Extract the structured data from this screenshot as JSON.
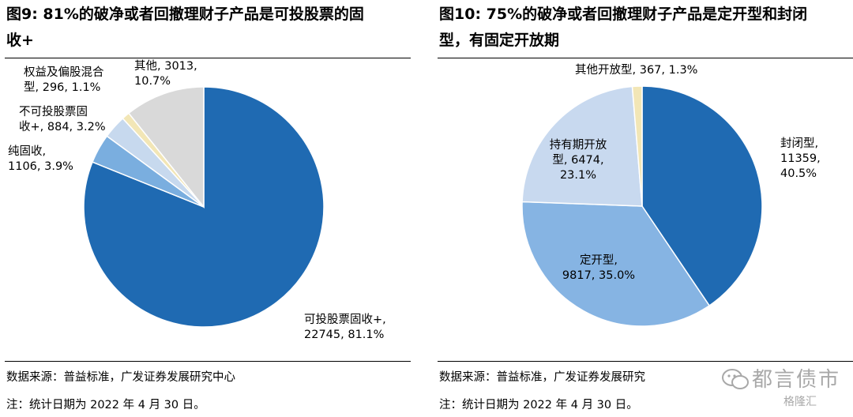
{
  "left": {
    "title_line1": "图9: 81%的破净或者回撤理财子产品是可投股票的固",
    "title_line2": "收+",
    "source": "数据来源：普益标准，广发证券发展研究中心",
    "note": "注：统计日期为 2022 年 4 月 30 日。"
  },
  "right": {
    "title_line1": "图10: 75%的破净或者回撤理财子产品是定开型和封闭",
    "title_line2": "型，有固定开放期",
    "source": "数据来源：普益标准，广发证券发展研究",
    "note": "注：统计日期为 2022 年 4 月 30 日。"
  },
  "watermark": {
    "name": "都言债市",
    "sub": "格隆汇"
  },
  "chart_data": [
    {
      "type": "pie",
      "title": "图9: 81%的破净或者回撤理财子产品是可投股票的固收+",
      "slices": [
        {
          "name": "可投股票固收+",
          "value": 22745,
          "percent": "81.1%",
          "color": "#1f6ab2",
          "label_lines": [
            "可投股票固收+,",
            "22745, 81.1%"
          ]
        },
        {
          "name": "纯固收",
          "value": 1106,
          "percent": "3.9%",
          "color": "#7aaedf",
          "label_lines": [
            "纯固收,",
            "1106, 3.9%"
          ]
        },
        {
          "name": "不可投股票固收+",
          "value": 884,
          "percent": "3.2%",
          "color": "#c7d9ee",
          "label_lines": [
            "不可投股票固",
            "收+, 884, 3.2%"
          ]
        },
        {
          "name": "权益及偏股混合型",
          "value": 296,
          "percent": "1.1%",
          "color": "#f2e6b6",
          "label_lines": [
            "权益及偏股混合",
            "型, 296, 1.1%"
          ]
        },
        {
          "name": "其他",
          "value": 3013,
          "percent": "10.7%",
          "color": "#d9d9d9",
          "label_lines": [
            "其他, 3013,",
            "10.7%"
          ]
        }
      ]
    },
    {
      "type": "pie",
      "title": "图10: 75%的破净或者回撤理财子产品是定开型和封闭型，有固定开放期",
      "slices": [
        {
          "name": "封闭型",
          "value": 11359,
          "percent": "40.5%",
          "color": "#1f6ab2",
          "label_lines": [
            "封闭型,",
            "11359,",
            "40.5%"
          ]
        },
        {
          "name": "定开型",
          "value": 9817,
          "percent": "35.0%",
          "color": "#86b4e3",
          "label_lines": [
            "定开型,",
            "9817, 35.0%"
          ]
        },
        {
          "name": "持有期开放型",
          "value": 6474,
          "percent": "23.1%",
          "color": "#c8d9ef",
          "label_lines": [
            "持有期开放",
            "型, 6474,",
            "23.1%"
          ]
        },
        {
          "name": "其他开放型",
          "value": 367,
          "percent": "1.3%",
          "color": "#f2e6b6",
          "label_lines": [
            "其他开放型, 367, 1.3%"
          ]
        }
      ]
    }
  ]
}
